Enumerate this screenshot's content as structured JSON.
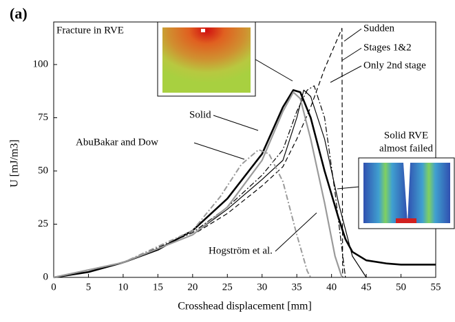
{
  "chart_data": {
    "type": "line",
    "panel_label": "(a)",
    "xlabel": "Crosshead displacement [mm]",
    "ylabel": "U [mJ/m3]",
    "xlim": [
      0,
      55
    ],
    "ylim": [
      0,
      120
    ],
    "xticks": [
      0,
      5,
      10,
      15,
      20,
      25,
      30,
      35,
      40,
      45,
      50,
      55
    ],
    "yticks": [
      0,
      25,
      50,
      75,
      100
    ],
    "grid": false,
    "annotations": [
      "Fracture in RVE",
      "Solid RVE",
      "almost failed"
    ],
    "series": [
      {
        "name": "Solid",
        "color": "#000000",
        "style": "solid",
        "width": 2.6,
        "x": [
          0,
          5,
          10,
          15,
          20,
          25,
          30,
          33,
          34.5,
          35.5,
          37,
          39,
          41,
          42,
          43,
          45,
          48,
          50,
          55
        ],
        "values": [
          0,
          2.5,
          7,
          13,
          22,
          37,
          58,
          80,
          88,
          87,
          75,
          50,
          28,
          18,
          12,
          8,
          6.5,
          6,
          6
        ]
      },
      {
        "name": "Sudden",
        "color": "#000000",
        "style": "dashed",
        "width": 1.2,
        "x": [
          0,
          10,
          20,
          25,
          30,
          33,
          35,
          37,
          39,
          41.5,
          41.6
        ],
        "values": [
          0,
          7,
          20,
          30,
          43,
          52,
          65,
          80,
          98,
          117,
          0
        ]
      },
      {
        "name": "Stages 1&2",
        "color": "#000000",
        "style": "solid",
        "width": 1.2,
        "x": [
          0,
          10,
          20,
          25,
          30,
          33,
          35,
          36,
          37,
          39,
          41,
          43,
          45
        ],
        "values": [
          0,
          7,
          20,
          32,
          46,
          55,
          75,
          88,
          85,
          65,
          35,
          10,
          0
        ]
      },
      {
        "name": "Only 2nd stage",
        "color": "#000000",
        "style": "dashdot",
        "width": 1.2,
        "x": [
          0,
          10,
          20,
          25,
          30,
          33,
          35,
          36.5,
          37.5,
          39,
          40.5,
          42
        ],
        "values": [
          0,
          7,
          21,
          33,
          48,
          60,
          78,
          88,
          90,
          75,
          40,
          0
        ]
      },
      {
        "name": "Hogström et al.",
        "color": "#9a9a9a",
        "style": "solid",
        "width": 2.2,
        "x": [
          0,
          10,
          20,
          25,
          30,
          33,
          34.5,
          35.5,
          37,
          39,
          40.5,
          41.5
        ],
        "values": [
          0,
          7,
          20,
          33,
          55,
          78,
          87,
          84,
          65,
          35,
          10,
          0
        ]
      },
      {
        "name": "AbuBakar and Dow",
        "color": "#9a9a9a",
        "style": "dashdot",
        "width": 2,
        "x": [
          0,
          10,
          20,
          24,
          27,
          29.5,
          31,
          33,
          35,
          36.5,
          37
        ],
        "values": [
          0,
          7,
          22,
          38,
          53,
          60,
          58,
          45,
          20,
          3,
          0
        ]
      }
    ]
  }
}
